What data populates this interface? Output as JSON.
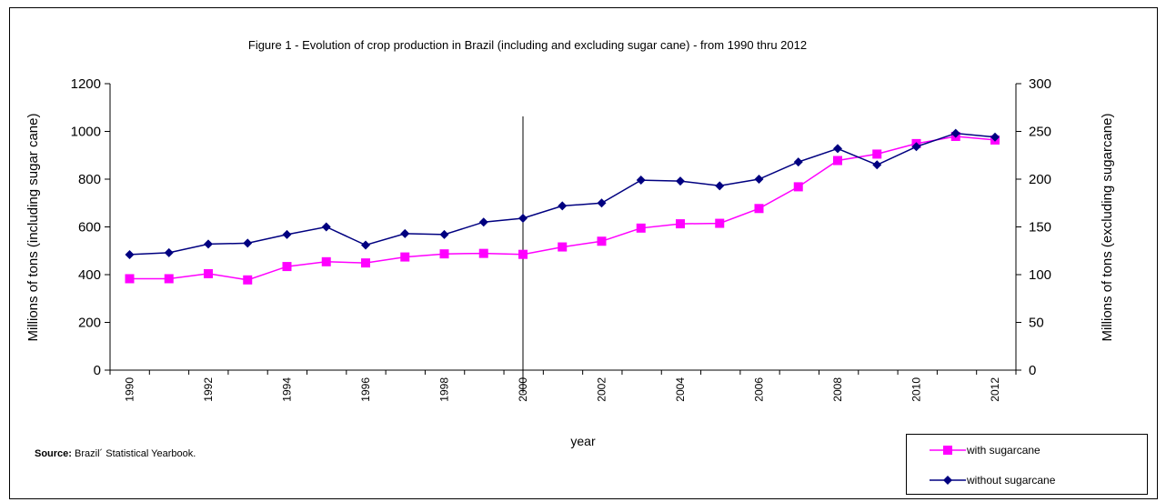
{
  "chart_data": {
    "type": "line",
    "title": "Figure 1 - Evolution of crop production in Brazil (including and excluding sugar cane) - from 1990 thru 2012",
    "xlabel": "year",
    "ylabel_left": "Millions of tons (including sugar cane)",
    "ylabel_right": "Millions of tons (excluding sugarcane)",
    "x": [
      1990,
      1991,
      1992,
      1993,
      1994,
      1995,
      1996,
      1997,
      1998,
      1999,
      2000,
      2001,
      2002,
      2003,
      2004,
      2005,
      2006,
      2007,
      2008,
      2009,
      2010,
      2011,
      2012
    ],
    "x_tick_labels": [
      "1990",
      "1992",
      "1994",
      "1996",
      "1998",
      "2000",
      "2002",
      "2004",
      "2006",
      "2008",
      "2010",
      "2012"
    ],
    "ylim_left": [
      0,
      1200
    ],
    "ylim_right": [
      0,
      300
    ],
    "y_ticks_left": [
      "0",
      "200",
      "400",
      "600",
      "800",
      "1000",
      "1200"
    ],
    "y_ticks_right": [
      "0",
      "50",
      "100",
      "150",
      "200",
      "250",
      "300"
    ],
    "grid": false,
    "legend_position": "bottom-right",
    "vertical_marker_x": 2000,
    "series": [
      {
        "name": "with sugarcane",
        "axis": "left",
        "color": "#FF00FF",
        "marker": "square",
        "values": [
          383,
          383,
          404,
          378,
          434,
          454,
          449,
          474,
          487,
          489,
          485,
          516,
          540,
          595,
          613,
          615,
          677,
          768,
          878,
          905,
          949,
          979,
          964
        ]
      },
      {
        "name": "without sugarcane",
        "axis": "right",
        "color": "#000080",
        "marker": "diamond",
        "values": [
          121,
          123,
          132,
          133,
          142,
          150,
          131,
          143,
          142,
          155,
          159,
          172,
          175,
          199,
          198,
          193,
          200,
          218,
          232,
          215,
          234,
          248,
          244
        ]
      }
    ]
  },
  "source": {
    "label": "Source:",
    "text": " Brazil´ Statistical Yearbook."
  }
}
